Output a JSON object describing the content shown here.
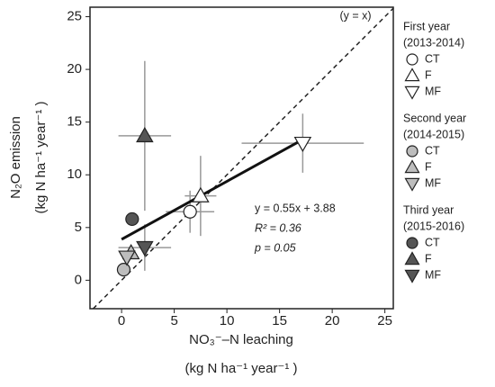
{
  "chart_data": {
    "type": "scatter",
    "xlabel": "NO₃⁻–N leaching",
    "xlabel_units": "(kg N ha⁻¹ year⁻¹ )",
    "ylabel": "N₂O emission",
    "ylabel_units": "(kg N ha⁻¹ year⁻¹ )",
    "xlim": [
      -3,
      25.8
    ],
    "ylim": [
      -2.7,
      25.9
    ],
    "xticks": [
      0,
      5,
      10,
      15,
      20,
      25
    ],
    "yticks": [
      0,
      5,
      10,
      15,
      20,
      25
    ],
    "identity_label": "(y = x)",
    "fit": {
      "slope": 0.55,
      "intercept": 3.88,
      "x_range": [
        0,
        17.2
      ],
      "equation": "y = 0.55x + 3.88",
      "r2": "R² = 0.36",
      "p": "p = 0.05"
    },
    "groups": [
      {
        "title": "First year",
        "period": "(2013-2014)",
        "color": "#ffffff",
        "series": [
          {
            "name": "CT",
            "marker": "circle",
            "x": 6.5,
            "y": 6.5,
            "xerr": 2.3,
            "yerr": 2.0
          },
          {
            "name": "F",
            "marker": "triangle-up",
            "x": 7.5,
            "y": 8.0,
            "xerr": 1.5,
            "yerr": 3.8
          },
          {
            "name": "MF",
            "marker": "triangle-down",
            "x": 17.2,
            "y": 13.0,
            "xerr": 5.8,
            "yerr": 2.8
          }
        ]
      },
      {
        "title": "Second year",
        "period": "(2014-2015)",
        "color": "#bdbdbd",
        "series": [
          {
            "name": "CT",
            "marker": "circle",
            "x": 0.2,
            "y": 1.0,
            "xerr": 0.3,
            "yerr": 0.5
          },
          {
            "name": "F",
            "marker": "triangle-up",
            "x": 0.9,
            "y": 2.6,
            "xerr": 0.4,
            "yerr": 0.6
          },
          {
            "name": "MF",
            "marker": "triangle-down",
            "x": 0.5,
            "y": 2.2,
            "xerr": 0.3,
            "yerr": 0.5
          }
        ]
      },
      {
        "title": "Third year",
        "period": "(2015-2016)",
        "color": "#555555",
        "series": [
          {
            "name": "CT",
            "marker": "circle",
            "x": 1.0,
            "y": 5.8,
            "xerr": 0.3,
            "yerr": 0.6
          },
          {
            "name": "F",
            "marker": "triangle-up",
            "x": 2.2,
            "y": 13.7,
            "xerr": 2.5,
            "yerr": 7.1
          },
          {
            "name": "MF",
            "marker": "triangle-down",
            "x": 2.2,
            "y": 3.1,
            "xerr": 2.5,
            "yerr": 2.2
          }
        ]
      }
    ]
  }
}
